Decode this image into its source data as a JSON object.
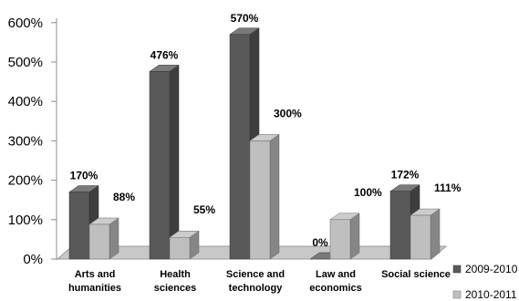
{
  "chart_data": {
    "type": "bar",
    "categories": [
      [
        "Arts and",
        "humanities"
      ],
      [
        "Health",
        "sciences"
      ],
      [
        "Science and",
        "technology"
      ],
      [
        "Law and",
        "economics"
      ],
      [
        "Social science"
      ]
    ],
    "series": [
      {
        "name": "2009-2010",
        "values": [
          170,
          476,
          570,
          0,
          172
        ],
        "labels": [
          "170%",
          "476%",
          "570%",
          "0%",
          "172%"
        ],
        "color": "#595959"
      },
      {
        "name": "2010-2011",
        "values": [
          88,
          55,
          300,
          100,
          111
        ],
        "labels": [
          "88%",
          "55%",
          "300%",
          "100%",
          "111%"
        ],
        "color": "#bfbfbf"
      }
    ],
    "yticks": [
      "0%",
      "100%",
      "200%",
      "300%",
      "400%",
      "500%",
      "600%"
    ],
    "ylim": [
      0,
      600
    ],
    "title": "",
    "xlabel": "",
    "ylabel": "",
    "legend": "bottom-right",
    "grid": false,
    "style": "3d-column"
  }
}
